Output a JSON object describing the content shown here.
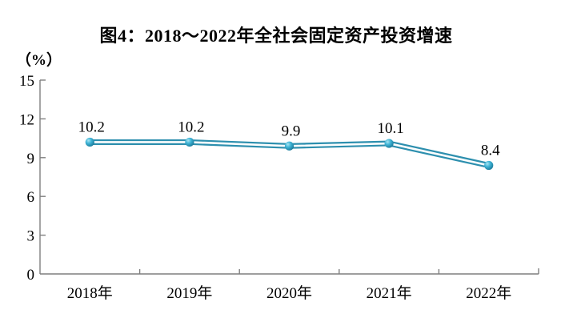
{
  "chart_data": {
    "type": "line",
    "title": "图4：2018～2022年全社会固定资产投资增速",
    "unit_label": "（%）",
    "categories": [
      "2018年",
      "2019年",
      "2020年",
      "2021年",
      "2022年"
    ],
    "values": [
      10.2,
      10.2,
      9.9,
      10.1,
      8.4
    ],
    "data_labels": [
      "10.2",
      "10.2",
      "9.9",
      "10.1",
      "8.4"
    ],
    "ylim": [
      0,
      15
    ],
    "yticks": [
      0,
      3,
      6,
      9,
      12,
      15
    ],
    "grid": false,
    "legend": "none",
    "line_color": "#2D8FAE",
    "line_inner_color": "#FDFEFE",
    "marker_highlight_color": "#A8E4F2",
    "marker_mid_color": "#3FB4D6",
    "marker_edge_color": "#1B7B9B",
    "axis_color": "#7F7F7F",
    "text_color": "#000000"
  }
}
